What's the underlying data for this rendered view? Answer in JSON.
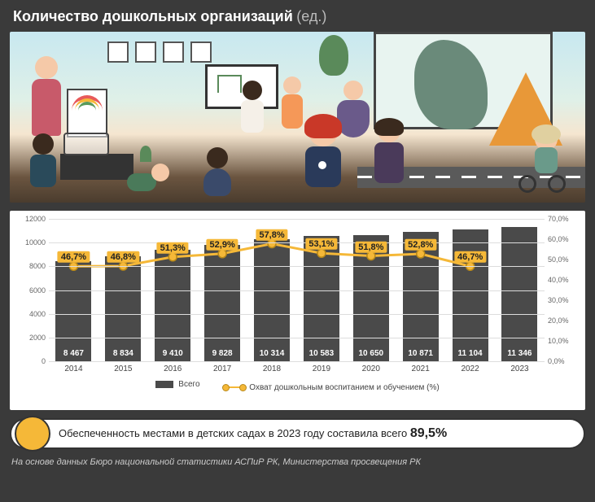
{
  "header": {
    "title": "Количество дошкольных организаций",
    "unit": "(ед.)"
  },
  "chart": {
    "type": "bar_line_combo",
    "y_left": {
      "min": 0,
      "max": 12000,
      "step": 2000
    },
    "y_right": {
      "min": 0.0,
      "max": 70.0,
      "step": 10.0,
      "suffix": "%"
    },
    "bar_color": "#4a4a4a",
    "line_color": "#f5b838",
    "line_stroke_width": 3,
    "marker_radius": 5,
    "marker_fill": "#f5b838",
    "marker_stroke": "#b88818",
    "grid_color": "#dddddd",
    "label_font_size": 10,
    "pct_label_bg": "#f5b838",
    "categories": [
      "2014",
      "2015",
      "2016",
      "2017",
      "2018",
      "2019",
      "2020",
      "2021",
      "2022",
      "2023"
    ],
    "bar_values": [
      8467,
      8834,
      9410,
      9828,
      10314,
      10583,
      10650,
      10871,
      11104,
      11346
    ],
    "bar_value_labels": [
      "8 467",
      "8 834",
      "9 410",
      "9 828",
      "10 314",
      "10 583",
      "10 650",
      "10 871",
      "11 104",
      "11 346"
    ],
    "line_values": [
      46.7,
      46.8,
      51.3,
      52.9,
      57.8,
      53.1,
      51.8,
      52.8,
      46.7,
      null
    ],
    "line_value_labels": [
      "46,7%",
      "46,8%",
      "51,3%",
      "52,9%",
      "57,8%",
      "53,1%",
      "51,8%",
      "52,8%",
      "46,7%",
      null
    ]
  },
  "legend": {
    "bar_label": "Всего",
    "line_label": "Охват дошкольным воспитанием и обучением (%)"
  },
  "callout": {
    "text_prefix": "Обеспеченность местами в детских садах в 2023 году составила всего ",
    "value": "89,5%"
  },
  "footnote": "На основе данных Бюро национальной статистики АСПиР РК, Министерства просвещения РК",
  "colors": {
    "page_bg": "#3a3a3a",
    "panel_bg": "#ffffff",
    "accent": "#f5b838"
  }
}
